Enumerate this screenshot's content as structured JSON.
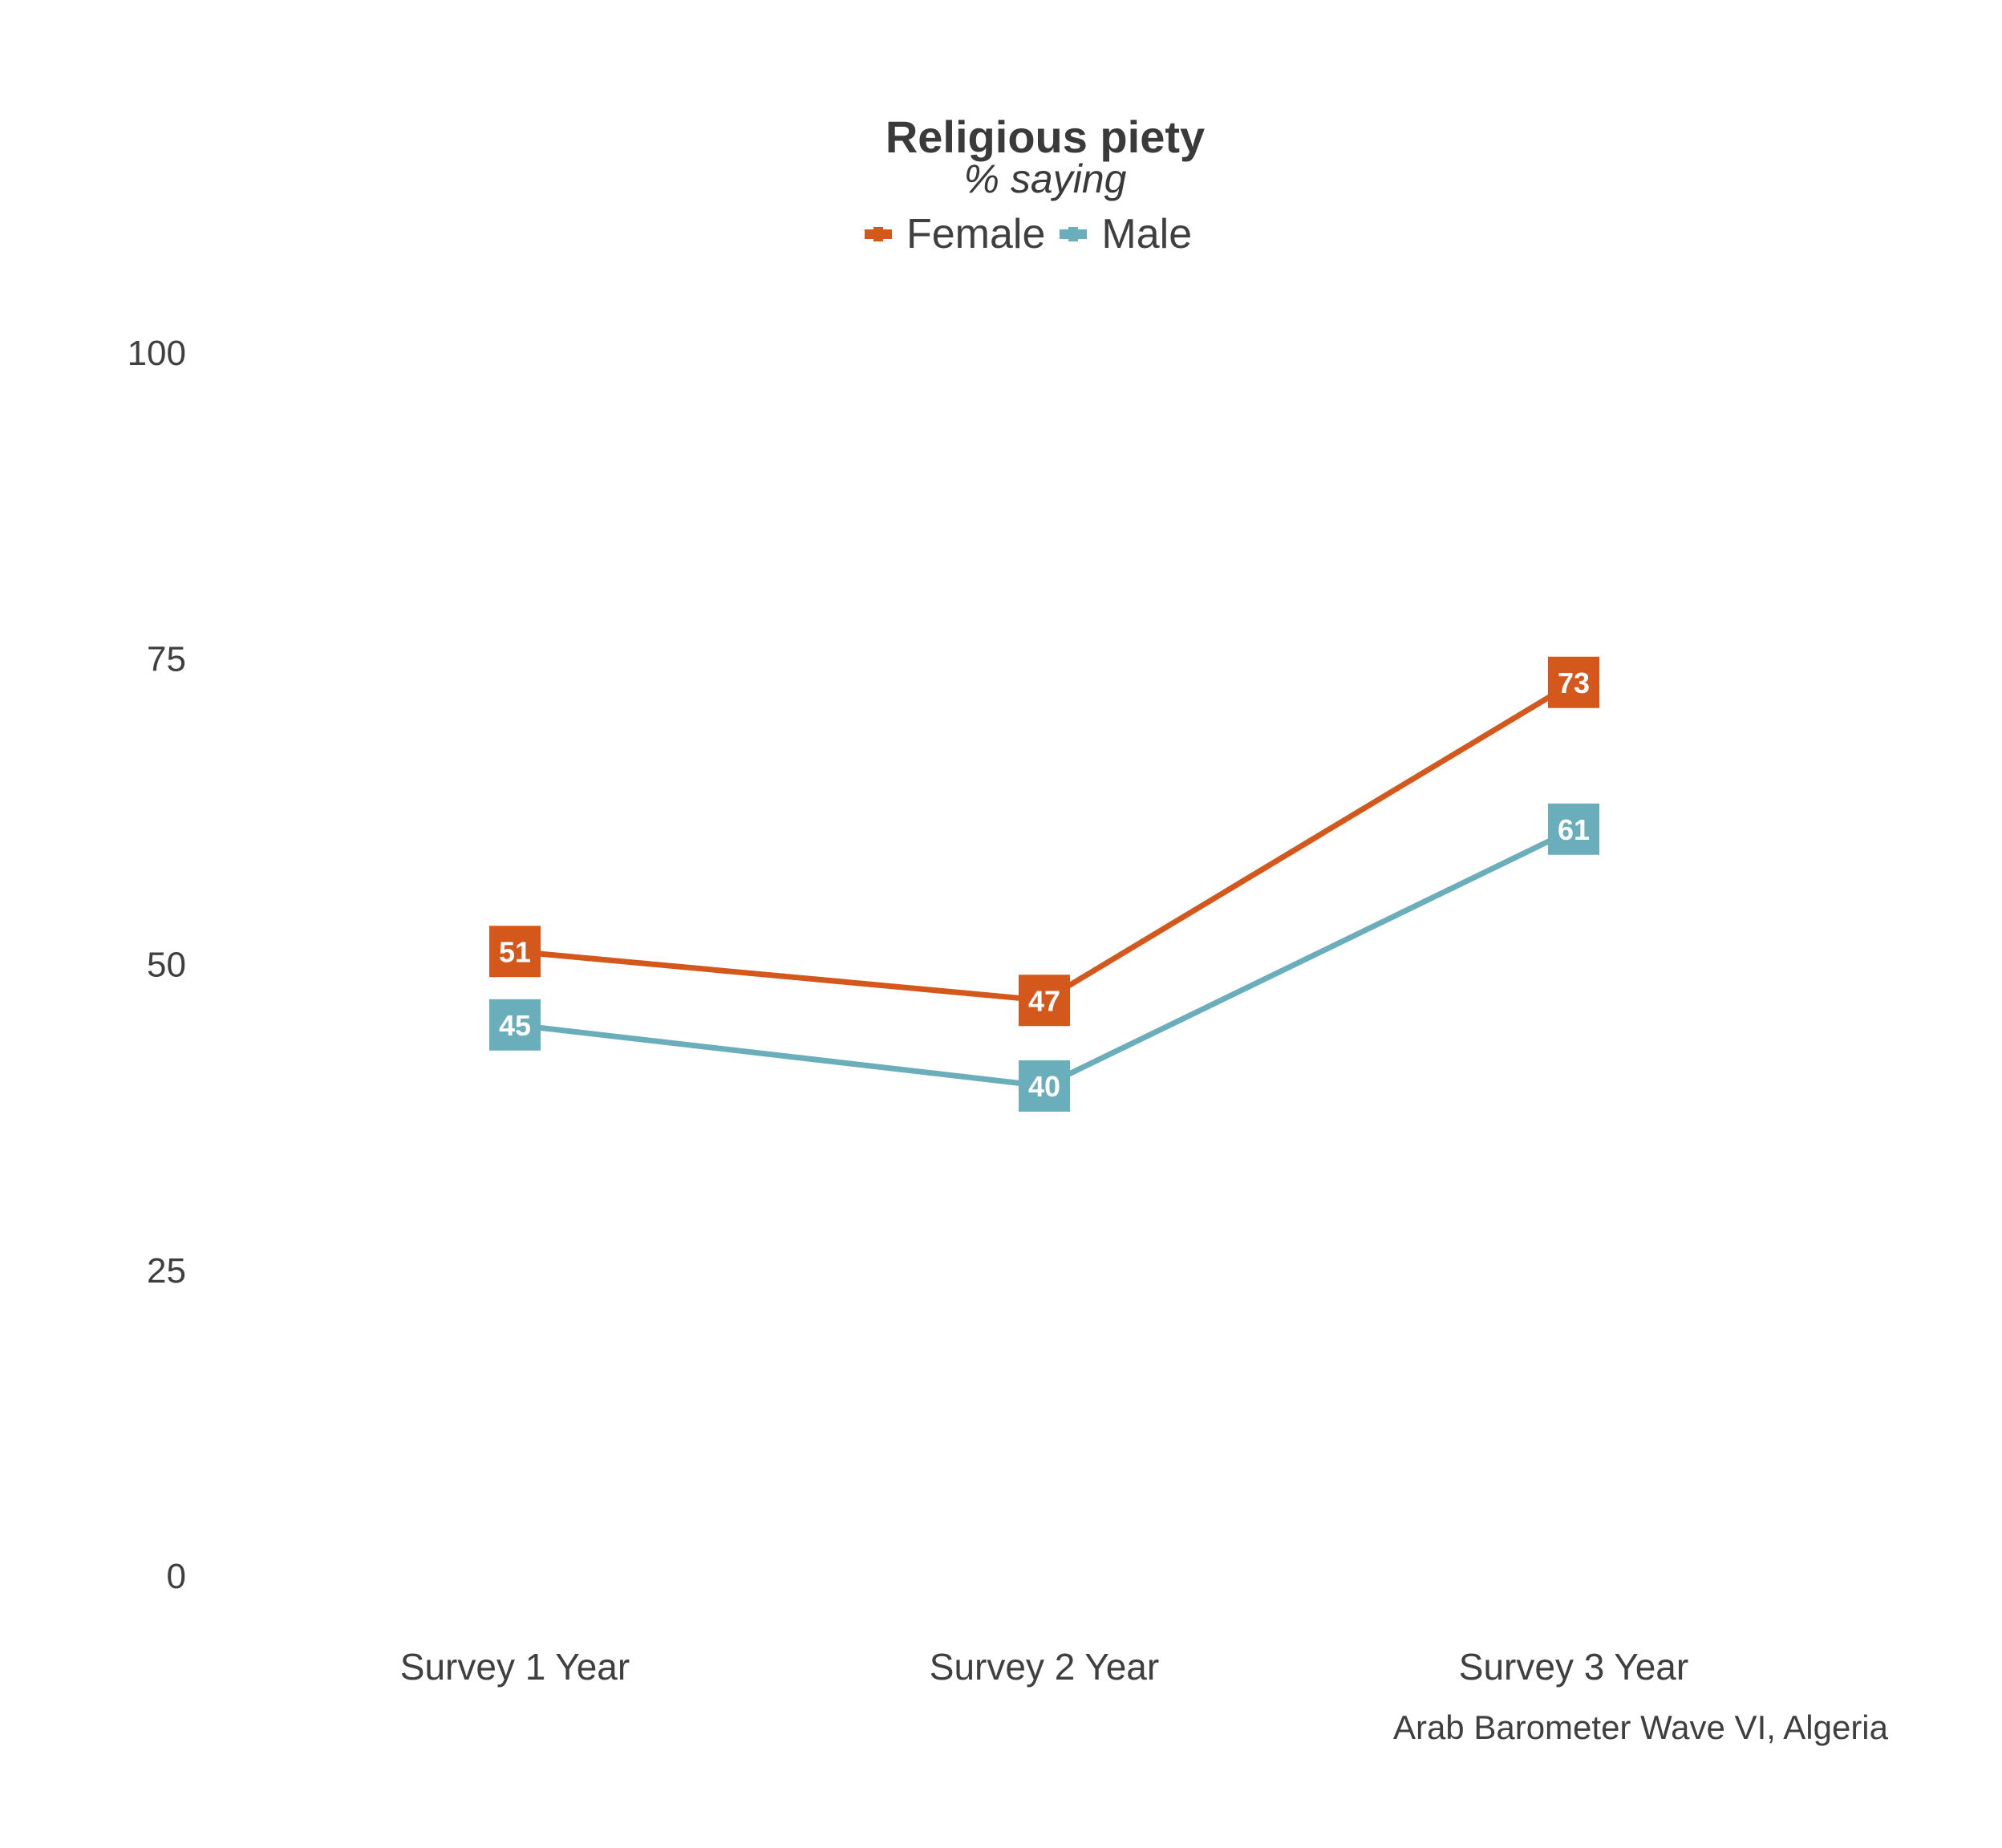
{
  "chart_data": {
    "type": "line",
    "title": "Religious piety",
    "subtitle": "% saying",
    "categories": [
      "Survey 1 Year",
      "Survey 2 Year",
      "Survey 3 Year"
    ],
    "series": [
      {
        "name": "Female",
        "color": "#d4581c",
        "values": [
          51,
          47,
          73
        ]
      },
      {
        "name": "Male",
        "color": "#6aaebb",
        "values": [
          45,
          40,
          61
        ]
      }
    ],
    "ylim": [
      0,
      100
    ],
    "yticks": [
      0,
      25,
      50,
      75,
      100
    ],
    "xlabel": "",
    "ylabel": "",
    "grid": false,
    "legend": "top-center"
  },
  "caption": "Arab Barometer Wave VI, Algeria"
}
